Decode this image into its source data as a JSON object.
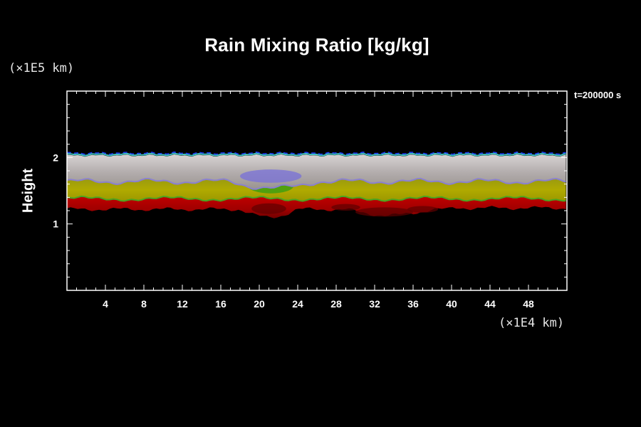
{
  "chart_data": {
    "type": "heatmap",
    "title": "Rain Mixing Ratio [kg/kg]",
    "time_label": "t=200000 s",
    "xlabel": "",
    "ylabel": "Height",
    "x_unit": "(×1E4 km)",
    "y_unit": "(×1E5 km)",
    "xlim": [
      0,
      52
    ],
    "ylim": [
      0,
      3
    ],
    "x_ticks": [
      4,
      8,
      12,
      16,
      20,
      24,
      28,
      32,
      36,
      40,
      44,
      48
    ],
    "y_ticks": [
      1,
      2
    ],
    "grid": false,
    "bands": [
      {
        "name_visible": false,
        "color": "#b00000",
        "bottom_mean": 1.16,
        "top_mean": 1.35
      },
      {
        "name_visible": false,
        "color": "#a6a600",
        "bottom_mean": 1.35,
        "top_mean": 1.6
      },
      {
        "name_visible": false,
        "color": "#a7a1a1",
        "bottom_mean": 1.6,
        "top_mean": 2.03
      }
    ],
    "colors": {
      "background": "#000000",
      "red_band": "#b00000",
      "red_dark": "#600000",
      "yellow_band": "#a6a600",
      "green_edge": "#4aa520",
      "white_band": "#b8b0b0",
      "purple_edge": "#8a80d0",
      "cyan_edge": "#40c0c0",
      "blue_edge": "#2040ff"
    }
  }
}
